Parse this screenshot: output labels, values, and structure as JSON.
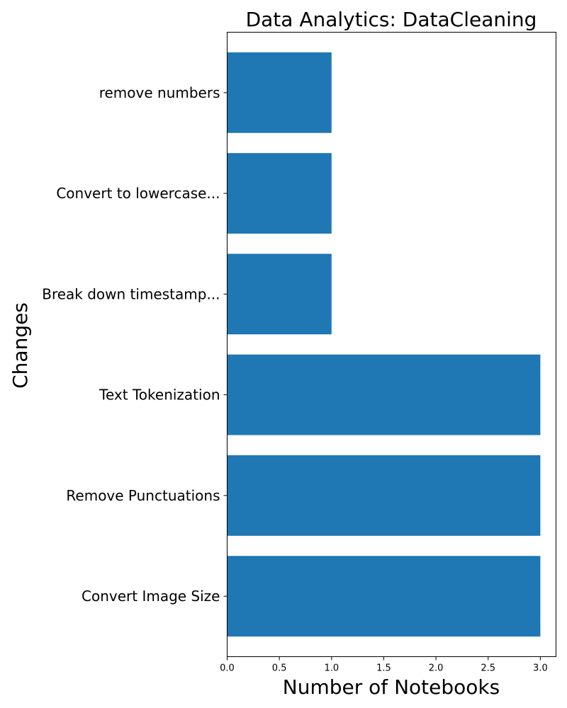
{
  "chart_data": {
    "type": "bar",
    "orientation": "horizontal",
    "title": "Data Analytics: DataCleaning",
    "xlabel": "Number of Notebooks",
    "ylabel": "Changes",
    "categories": [
      "Convert Image Size",
      "Remove Punctuations",
      "Text Tokenization",
      "Break down timestamp...",
      "Convert to lowercase...",
      "remove numbers"
    ],
    "values": [
      3,
      3,
      3,
      1,
      1,
      1
    ],
    "xlim": [
      0,
      3.15
    ],
    "xticks": [
      "0.0",
      "0.5",
      "1.0",
      "1.5",
      "2.0",
      "2.5",
      "3.0"
    ],
    "grid": false,
    "bar_color": "#1f77b4"
  }
}
